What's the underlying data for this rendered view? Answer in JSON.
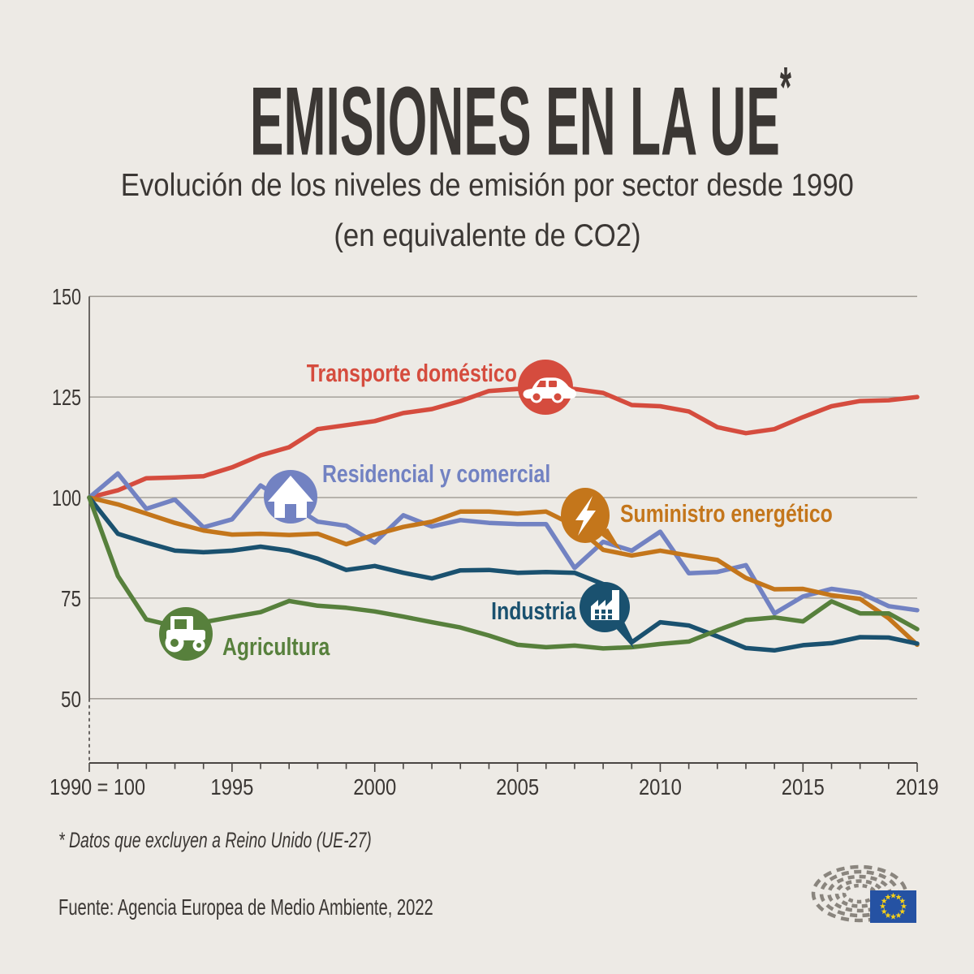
{
  "page": {
    "background": "#EDEAE5"
  },
  "header": {
    "title": "EMISIONES EN LA UE",
    "title_asterisk": "*",
    "subtitle_line1": "Evolución de los niveles de emisión por sector desde 1990",
    "subtitle_line2": "(en equivalente de CO2)"
  },
  "chart_data": {
    "type": "line",
    "title": "EMISIONES EN LA UE*",
    "subtitle": "Evolución de los niveles de emisión por sector desde 1990 (en equivalente de CO2)",
    "index_note": "1990 = 100",
    "grid": "horizontal",
    "ylim": [
      50,
      150
    ],
    "y_ticks": [
      150,
      125,
      100,
      75,
      50
    ],
    "x": [
      1990,
      1991,
      1992,
      1993,
      1994,
      1995,
      1996,
      1997,
      1998,
      1999,
      2000,
      2001,
      2002,
      2003,
      2004,
      2005,
      2006,
      2007,
      2008,
      2009,
      2010,
      2011,
      2012,
      2013,
      2014,
      2015,
      2016,
      2017,
      2018,
      2019
    ],
    "x_tick_labels": [
      {
        "label": "1990 = 100",
        "year": 1990
      },
      {
        "label": "1995",
        "year": 1995
      },
      {
        "label": "2000",
        "year": 2000
      },
      {
        "label": "2005",
        "year": 2005
      },
      {
        "label": "2010",
        "year": 2010
      },
      {
        "label": "2015",
        "year": 2015
      },
      {
        "label": "2019",
        "year": 2019
      }
    ],
    "series": [
      {
        "id": "transporte",
        "label": "Transporte doméstico",
        "icon": "car-icon",
        "color": "#D54C3E",
        "values": [
          100,
          101.8,
          104.8,
          105,
          105.3,
          107.5,
          110.5,
          112.5,
          117,
          118,
          119,
          121,
          122,
          124,
          126.5,
          127,
          127.3,
          127,
          126,
          123,
          122.7,
          121.4,
          117.5,
          116,
          117,
          120,
          122.7,
          124,
          124.2,
          125
        ]
      },
      {
        "id": "residencial",
        "label": "Residencial y comercial",
        "icon": "house-icon",
        "color": "#7282C2",
        "values": [
          100,
          106,
          97.2,
          99.5,
          92.6,
          94.6,
          103,
          98.5,
          94,
          93,
          88.8,
          95.6,
          92.8,
          94.4,
          93.7,
          93.4,
          93.4,
          82.5,
          89,
          86.8,
          91.5,
          81.2,
          81.5,
          83.2,
          71.2,
          75.4,
          77.3,
          76.3,
          73,
          72
        ]
      },
      {
        "id": "suministro",
        "label": "Suministro energético",
        "icon": "lightning-icon",
        "color": "#C4761B",
        "values": [
          100,
          98.3,
          96,
          93.7,
          91.8,
          90.8,
          91,
          90.7,
          91,
          88.4,
          90.8,
          92.7,
          94,
          96.5,
          96.5,
          96,
          96.5,
          93,
          87,
          85.6,
          86.8,
          85.6,
          84.5,
          80,
          77.2,
          77.3,
          75.7,
          74.8,
          70,
          63.4
        ]
      },
      {
        "id": "industria",
        "label": "Industria",
        "icon": "factory-icon",
        "color": "#1A516F",
        "values": [
          100,
          91,
          88.8,
          86.8,
          86.4,
          86.8,
          87.8,
          86.8,
          84.8,
          82,
          83,
          81.3,
          79.9,
          81.9,
          82,
          81.3,
          81.5,
          81.3,
          78.5,
          64,
          69,
          68.2,
          65.5,
          62.6,
          62,
          63.3,
          63.8,
          65.3,
          65.2,
          63.7
        ]
      },
      {
        "id": "agricultura",
        "label": "Agricultura",
        "icon": "tractor-icon",
        "color": "#57803C",
        "values": [
          100,
          80.5,
          69.7,
          68,
          69,
          70.3,
          71.5,
          74.3,
          73.1,
          72.6,
          71.7,
          70.4,
          69,
          67.7,
          65.7,
          63.4,
          62.8,
          63.2,
          62.5,
          62.8,
          63.6,
          64.2,
          67,
          69.6,
          70.2,
          69.2,
          74.2,
          71.2,
          71.2,
          67.3
        ]
      }
    ],
    "colors": {
      "grid": "#97928B",
      "axis": "#4A4643",
      "text": "#3B3734",
      "flag_blue": "#2552A3",
      "star_gold": "#F6D018",
      "hemicycle_gray": "#8A857E"
    }
  },
  "footnote": {
    "text": "* Datos que excluyen a Reino Unido (UE-27)"
  },
  "source": {
    "text": "Fuente: Agencia Europea de Medio Ambiente, 2022"
  }
}
